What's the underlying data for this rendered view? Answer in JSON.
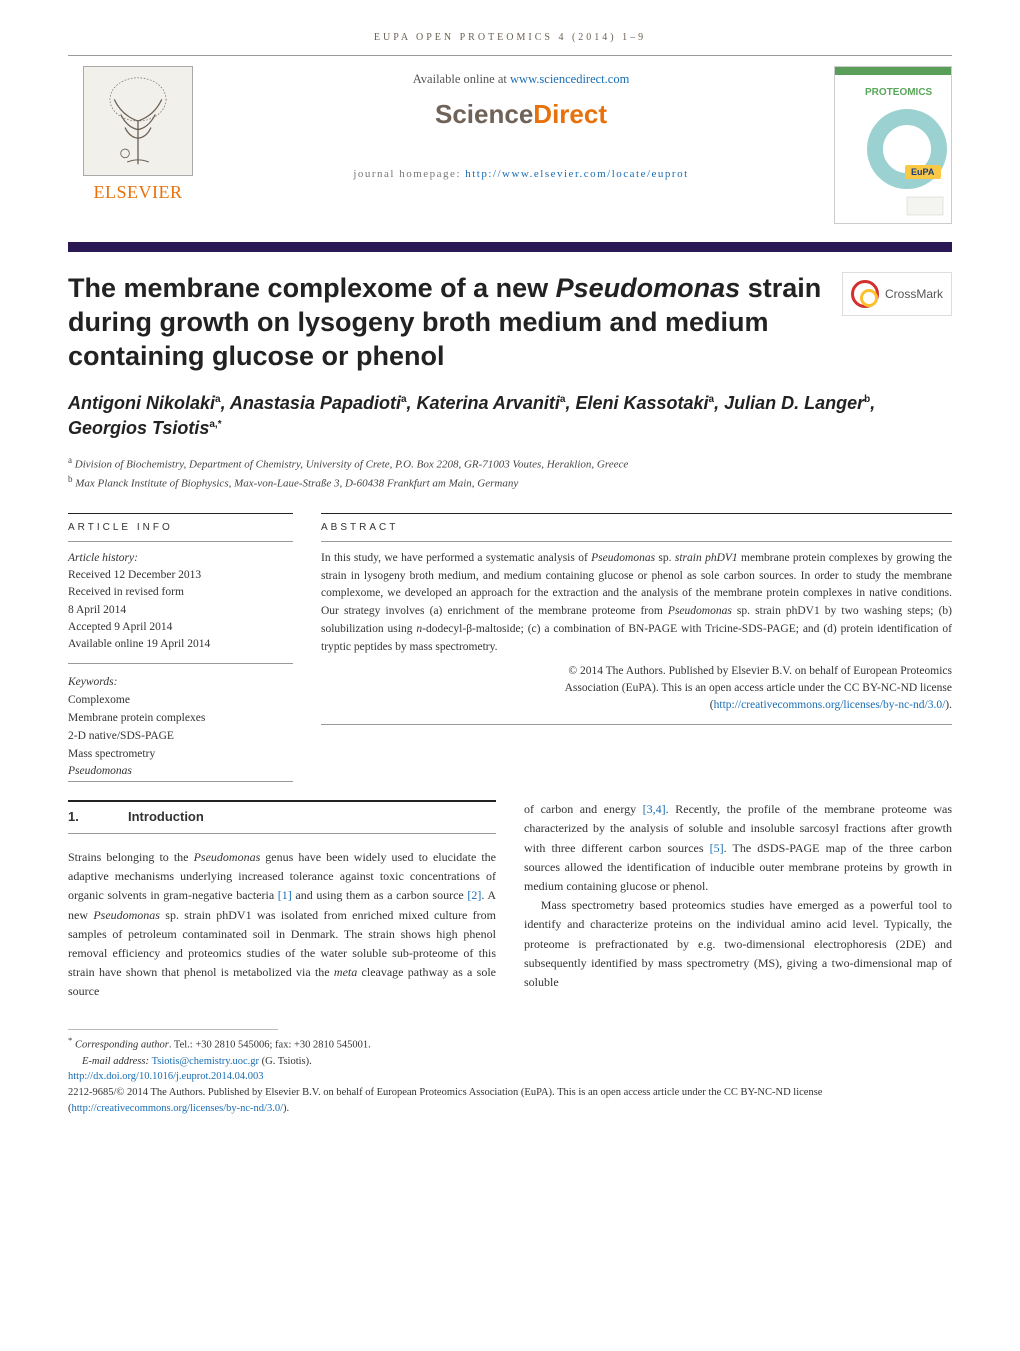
{
  "page_header": "EUPA OPEN PROTEOMICS 4 (2014) 1–9",
  "available_online_prefix": "Available online at ",
  "available_online_link": "www.sciencedirect.com",
  "sciencedirect_sci": "Science",
  "sciencedirect_dir": "Direct",
  "journal_homepage_prefix": "journal homepage: ",
  "journal_homepage_link": "http://www.elsevier.com/locate/euprot",
  "elsevier_wordmark": "ELSEVIER",
  "journal_cover": {
    "top_label": "PROTEOMICS",
    "badge": "EuPA",
    "top_bar_color": "#5a9e5a",
    "name_color": "#5aa65a",
    "badge_bg": "#f9c846",
    "loop_color": "#9bd1d1"
  },
  "crossmark_label": "CrossMark",
  "title_pre": "The membrane complexome of a new ",
  "title_ital": "Pseudomonas",
  "title_post": " strain during growth on lysogeny broth medium and medium containing glucose or phenol",
  "authors_html": "Antigoni Nikolaki<sup>a</sup>, Anastasia Papadioti<sup>a</sup>, Katerina Arvaniti<sup>a</sup>, Eleni Kassotaki<sup>a</sup>, Julian D. Langer<sup>b</sup>, Georgios Tsiotis<sup>a,*</sup>",
  "affil_a": "Division of Biochemistry, Department of Chemistry, University of Crete, P.O. Box 2208, GR-71003 Voutes, Heraklion, Greece",
  "affil_b": "Max Planck Institute of Biophysics, Max-von-Laue-Straße 3, D-60438 Frankfurt am Main, Germany",
  "article_info_heading": "ARTICLE INFO",
  "abstract_heading": "ABSTRACT",
  "history": {
    "label": "Article history:",
    "l1": "Received 12 December 2013",
    "l2": "Received in revised form",
    "l3": "8 April 2014",
    "l4": "Accepted 9 April 2014",
    "l5": "Available online 19 April 2014"
  },
  "keywords_label": "Keywords:",
  "keywords": [
    "Complexome",
    "Membrane protein complexes",
    "2-D native/SDS-PAGE",
    "Mass spectrometry",
    "Pseudomonas"
  ],
  "abstract_pre": "In this study, we have performed a systematic analysis of ",
  "abstract_ital1": "Pseudomonas",
  "abstract_mid1": " sp. ",
  "abstract_ital2": "strain phDV1",
  "abstract_mid2": " membrane protein complexes by growing the strain in lysogeny broth medium, and medium containing glucose or phenol as sole carbon sources. In order to study the membrane complexome, we developed an approach for the extraction and the analysis of the membrane protein complexes in native conditions. Our strategy involves (a) enrichment of the membrane proteome from ",
  "abstract_ital3": "Pseudomonas",
  "abstract_mid3": " sp. strain phDV1 by two washing steps; (b) solubilization using ",
  "abstract_ital4": "n",
  "abstract_post": "-dodecyl-β-maltoside; (c) a combination of BN-PAGE with Tricine-SDS-PAGE; and (d) protein identification of tryptic peptides by mass spectrometry.",
  "abs_foot1": "© 2014 The Authors. Published by Elsevier B.V. on behalf of European Proteomics",
  "abs_foot2": "Association (EuPA). This is an open access article under the CC BY-NC-ND license",
  "abs_foot_link": "http://creativecommons.org/licenses/by-nc-nd/3.0/",
  "intro_num": "1.",
  "intro_title": "Introduction",
  "col1_p1a": "Strains belonging to the ",
  "col1_p1_it1": "Pseudomonas",
  "col1_p1b": " genus have been widely used to elucidate the adaptive mechanisms underlying increased tolerance against toxic concentrations of organic solvents in gram-negative bacteria ",
  "col1_p1_ref1": "[1]",
  "col1_p1c": " and using them as a carbon source ",
  "col1_p1_ref2": "[2]",
  "col1_p1d": ". A new ",
  "col1_p1_it2": "Pseudomonas",
  "col1_p1e": " sp. strain phDV1 was isolated from enriched mixed culture from samples of petroleum contaminated soil in Denmark. The strain shows high phenol removal efficiency and proteomics studies of the water soluble sub-proteome of this strain have shown that phenol is metabolized via the ",
  "col1_p1_it3": "meta",
  "col1_p1f": " cleavage pathway as a sole source",
  "col2_p1a": "of carbon and energy ",
  "col2_p1_ref1": "[3,4]",
  "col2_p1b": ". Recently, the profile of the membrane proteome was characterized by the analysis of soluble and insoluble sarcosyl fractions after growth with three different carbon sources ",
  "col2_p1_ref2": "[5]",
  "col2_p1c": ". The dSDS-PAGE map of the three carbon sources allowed the identification of inducible outer membrane proteins by growth in medium containing glucose or phenol.",
  "col2_p2": "Mass spectrometry based proteomics studies have emerged as a powerful tool to identify and characterize proteins on the individual amino acid level. Typically, the proteome is prefractionated by e.g. two-dimensional electrophoresis (2DE) and subsequently identified by mass spectrometry (MS), giving a two-dimensional map of soluble",
  "corr_label": "Corresponding author",
  "corr_text": ". Tel.: +30 2810 545006; fax: +30 2810 545001.",
  "email_label": "E-mail address: ",
  "email_link": "Tsiotis@chemistry.uoc.gr",
  "email_suffix": " (G. Tsiotis).",
  "doi_link": "http://dx.doi.org/10.1016/j.euprot.2014.04.003",
  "issn_line_a": "2212-9685/© 2014 The Authors. Published by Elsevier B.V. on behalf of European Proteomics Association (EuPA). This is an open access article under the CC BY-NC-ND license (",
  "issn_link": "http://creativecommons.org/licenses/by-nc-nd/3.0/",
  "issn_line_b": ")."
}
